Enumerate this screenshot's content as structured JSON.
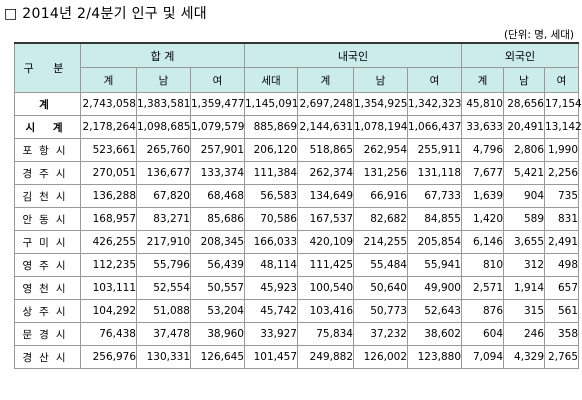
{
  "title": "□ 2014년 2/4분기 인구 및 세대",
  "unit_note": "(단위: 명, 세대)",
  "header": {
    "gubun": "구 분",
    "group_total": "합 계",
    "group_korean": "내국인",
    "group_foreign": "외국인",
    "total_cols": [
      "계",
      "남",
      "여"
    ],
    "korean_cols": [
      "세대",
      "계",
      "남",
      "여"
    ],
    "foreign_cols": [
      "계",
      "남",
      "여"
    ]
  },
  "rows": [
    {
      "name": "계",
      "style": "total",
      "values": [
        "2,743,058",
        "1,383,581",
        "1,359,477",
        "1,145,091",
        "2,697,248",
        "1,354,925",
        "1,342,323",
        "45,810",
        "28,656",
        "17,154"
      ]
    },
    {
      "name": "시 계",
      "style": "sub",
      "values": [
        "2,178,264",
        "1,098,685",
        "1,079,579",
        "885,869",
        "2,144,631",
        "1,078,194",
        "1,066,437",
        "33,633",
        "20,491",
        "13,142"
      ]
    },
    {
      "name": "포항시",
      "style": "",
      "values": [
        "523,661",
        "265,760",
        "257,901",
        "206,120",
        "518,865",
        "262,954",
        "255,911",
        "4,796",
        "2,806",
        "1,990"
      ]
    },
    {
      "name": "경주시",
      "style": "",
      "values": [
        "270,051",
        "136,677",
        "133,374",
        "111,384",
        "262,374",
        "131,256",
        "131,118",
        "7,677",
        "5,421",
        "2,256"
      ]
    },
    {
      "name": "김천시",
      "style": "",
      "values": [
        "136,288",
        "67,820",
        "68,468",
        "56,583",
        "134,649",
        "66,916",
        "67,733",
        "1,639",
        "904",
        "735"
      ]
    },
    {
      "name": "안동시",
      "style": "",
      "values": [
        "168,957",
        "83,271",
        "85,686",
        "70,586",
        "167,537",
        "82,682",
        "84,855",
        "1,420",
        "589",
        "831"
      ]
    },
    {
      "name": "구미시",
      "style": "",
      "values": [
        "426,255",
        "217,910",
        "208,345",
        "166,033",
        "420,109",
        "214,255",
        "205,854",
        "6,146",
        "3,655",
        "2,491"
      ]
    },
    {
      "name": "영주시",
      "style": "",
      "values": [
        "112,235",
        "55,796",
        "56,439",
        "48,114",
        "111,425",
        "55,484",
        "55,941",
        "810",
        "312",
        "498"
      ]
    },
    {
      "name": "영천시",
      "style": "",
      "values": [
        "103,111",
        "52,554",
        "50,557",
        "45,923",
        "100,540",
        "50,640",
        "49,900",
        "2,571",
        "1,914",
        "657"
      ]
    },
    {
      "name": "상주시",
      "style": "",
      "values": [
        "104,292",
        "51,088",
        "53,204",
        "45,742",
        "103,416",
        "50,773",
        "52,643",
        "876",
        "315",
        "561"
      ]
    },
    {
      "name": "문경시",
      "style": "",
      "values": [
        "76,438",
        "37,478",
        "38,960",
        "33,927",
        "75,834",
        "37,232",
        "38,602",
        "604",
        "246",
        "358"
      ]
    },
    {
      "name": "경산시",
      "style": "",
      "values": [
        "256,976",
        "130,331",
        "126,645",
        "101,457",
        "249,882",
        "126,002",
        "123,880",
        "7,094",
        "4,329",
        "2,765"
      ]
    }
  ]
}
